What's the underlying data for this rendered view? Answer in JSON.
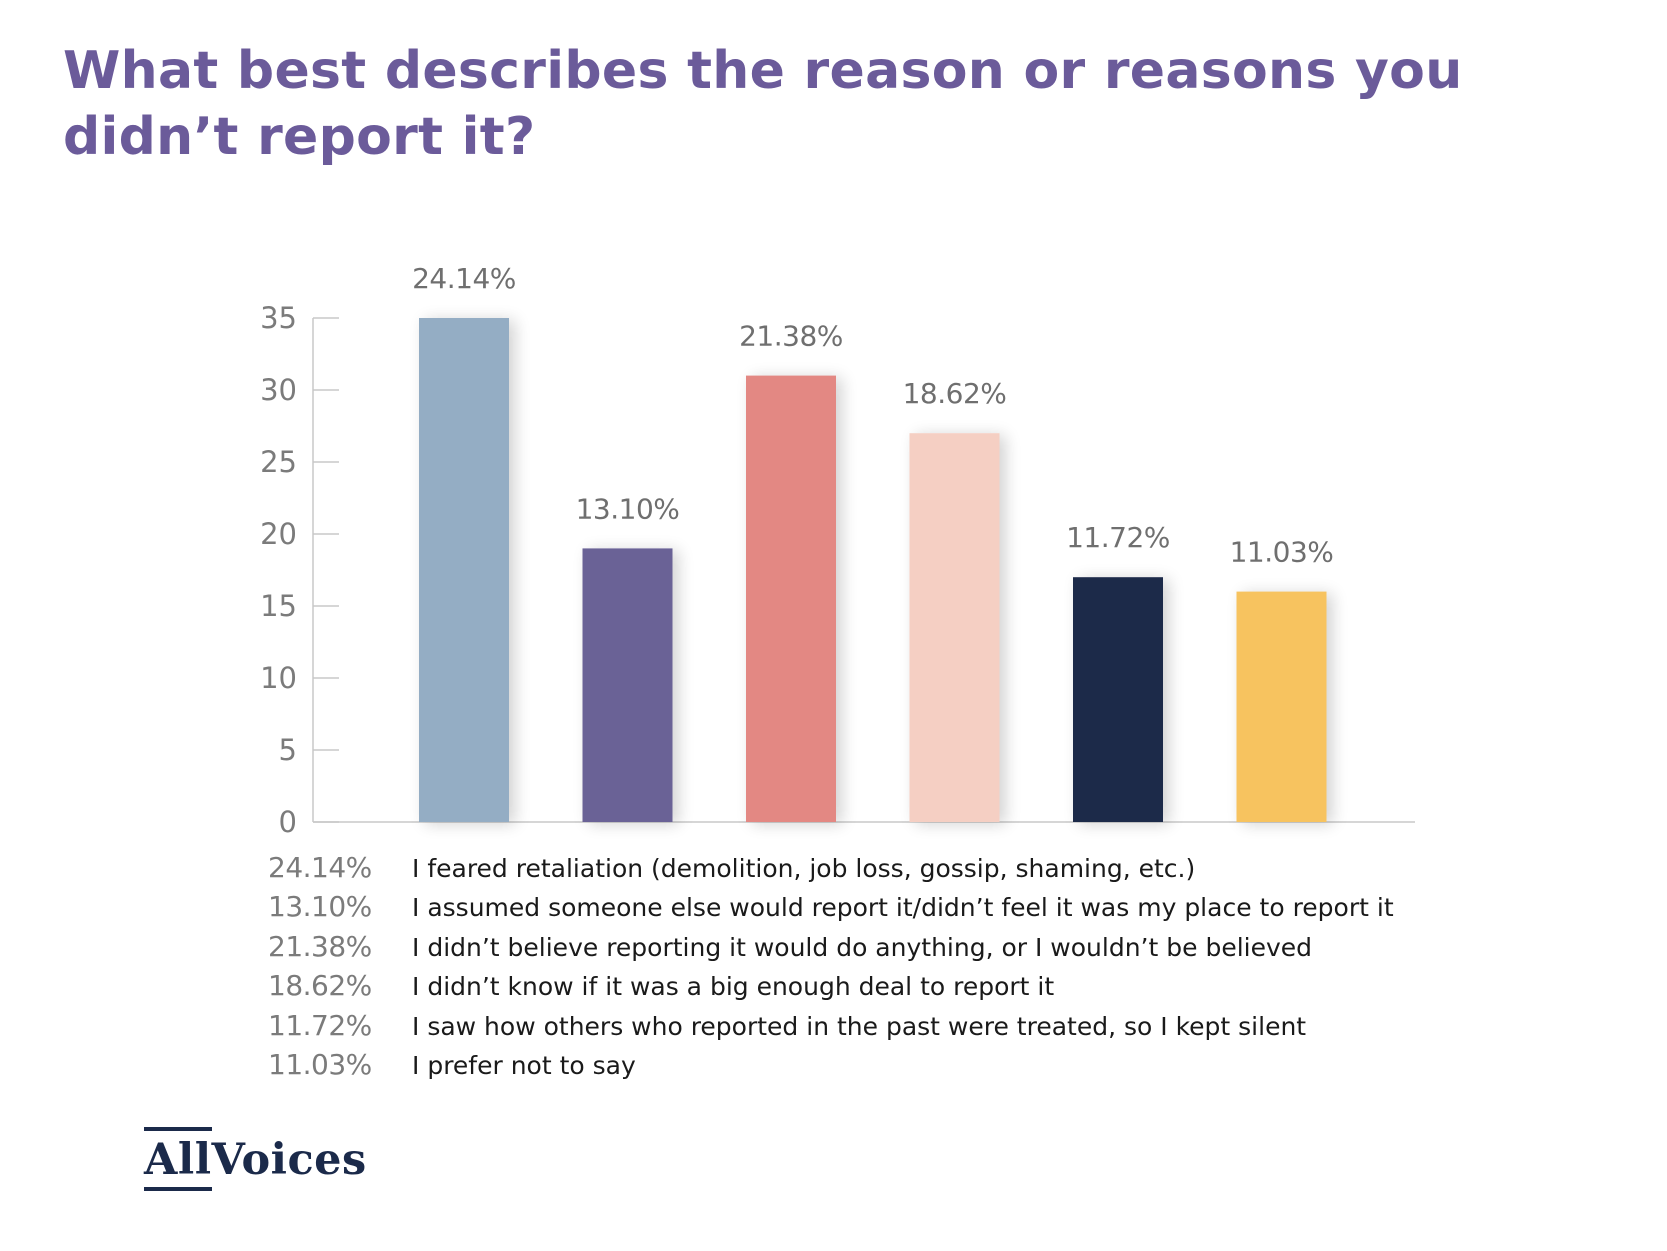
{
  "chart_data": {
    "type": "bar",
    "title": "What best describes the reason or reasons you didn’t report it?",
    "title_lines": [
      "What best describes the reason or reasons you",
      "didn’t report it?"
    ],
    "categories": [
      "I feared retaliation (demolition, job loss, gossip, shaming, etc.)",
      "I assumed someone else would report it/didn’t feel it was my place to report it",
      "I didn’t believe reporting it would do anything, or I wouldn’t be believed",
      "I didn’t know if it was a big enough deal to report it",
      "I saw how others who reported in the past were treated, so I kept silent",
      "I prefer not to say"
    ],
    "values": [
      35,
      19,
      31,
      27,
      17,
      16
    ],
    "data_labels": [
      "24.14%",
      "13.10%",
      "21.38%",
      "18.62%",
      "11.72%",
      "11.03%"
    ],
    "colors": [
      "#94adc4",
      "#6a6296",
      "#e38883",
      "#f5cfc3",
      "#1c2a4a",
      "#f7c35f"
    ],
    "ylim": [
      0,
      35
    ],
    "yticks": [
      0,
      5,
      10,
      15,
      20,
      25,
      30,
      35
    ],
    "xlabel": "",
    "ylabel": "",
    "grid": false,
    "legend_position": "bottom"
  },
  "logo": {
    "text_left": "All",
    "text_right": "Voices"
  }
}
